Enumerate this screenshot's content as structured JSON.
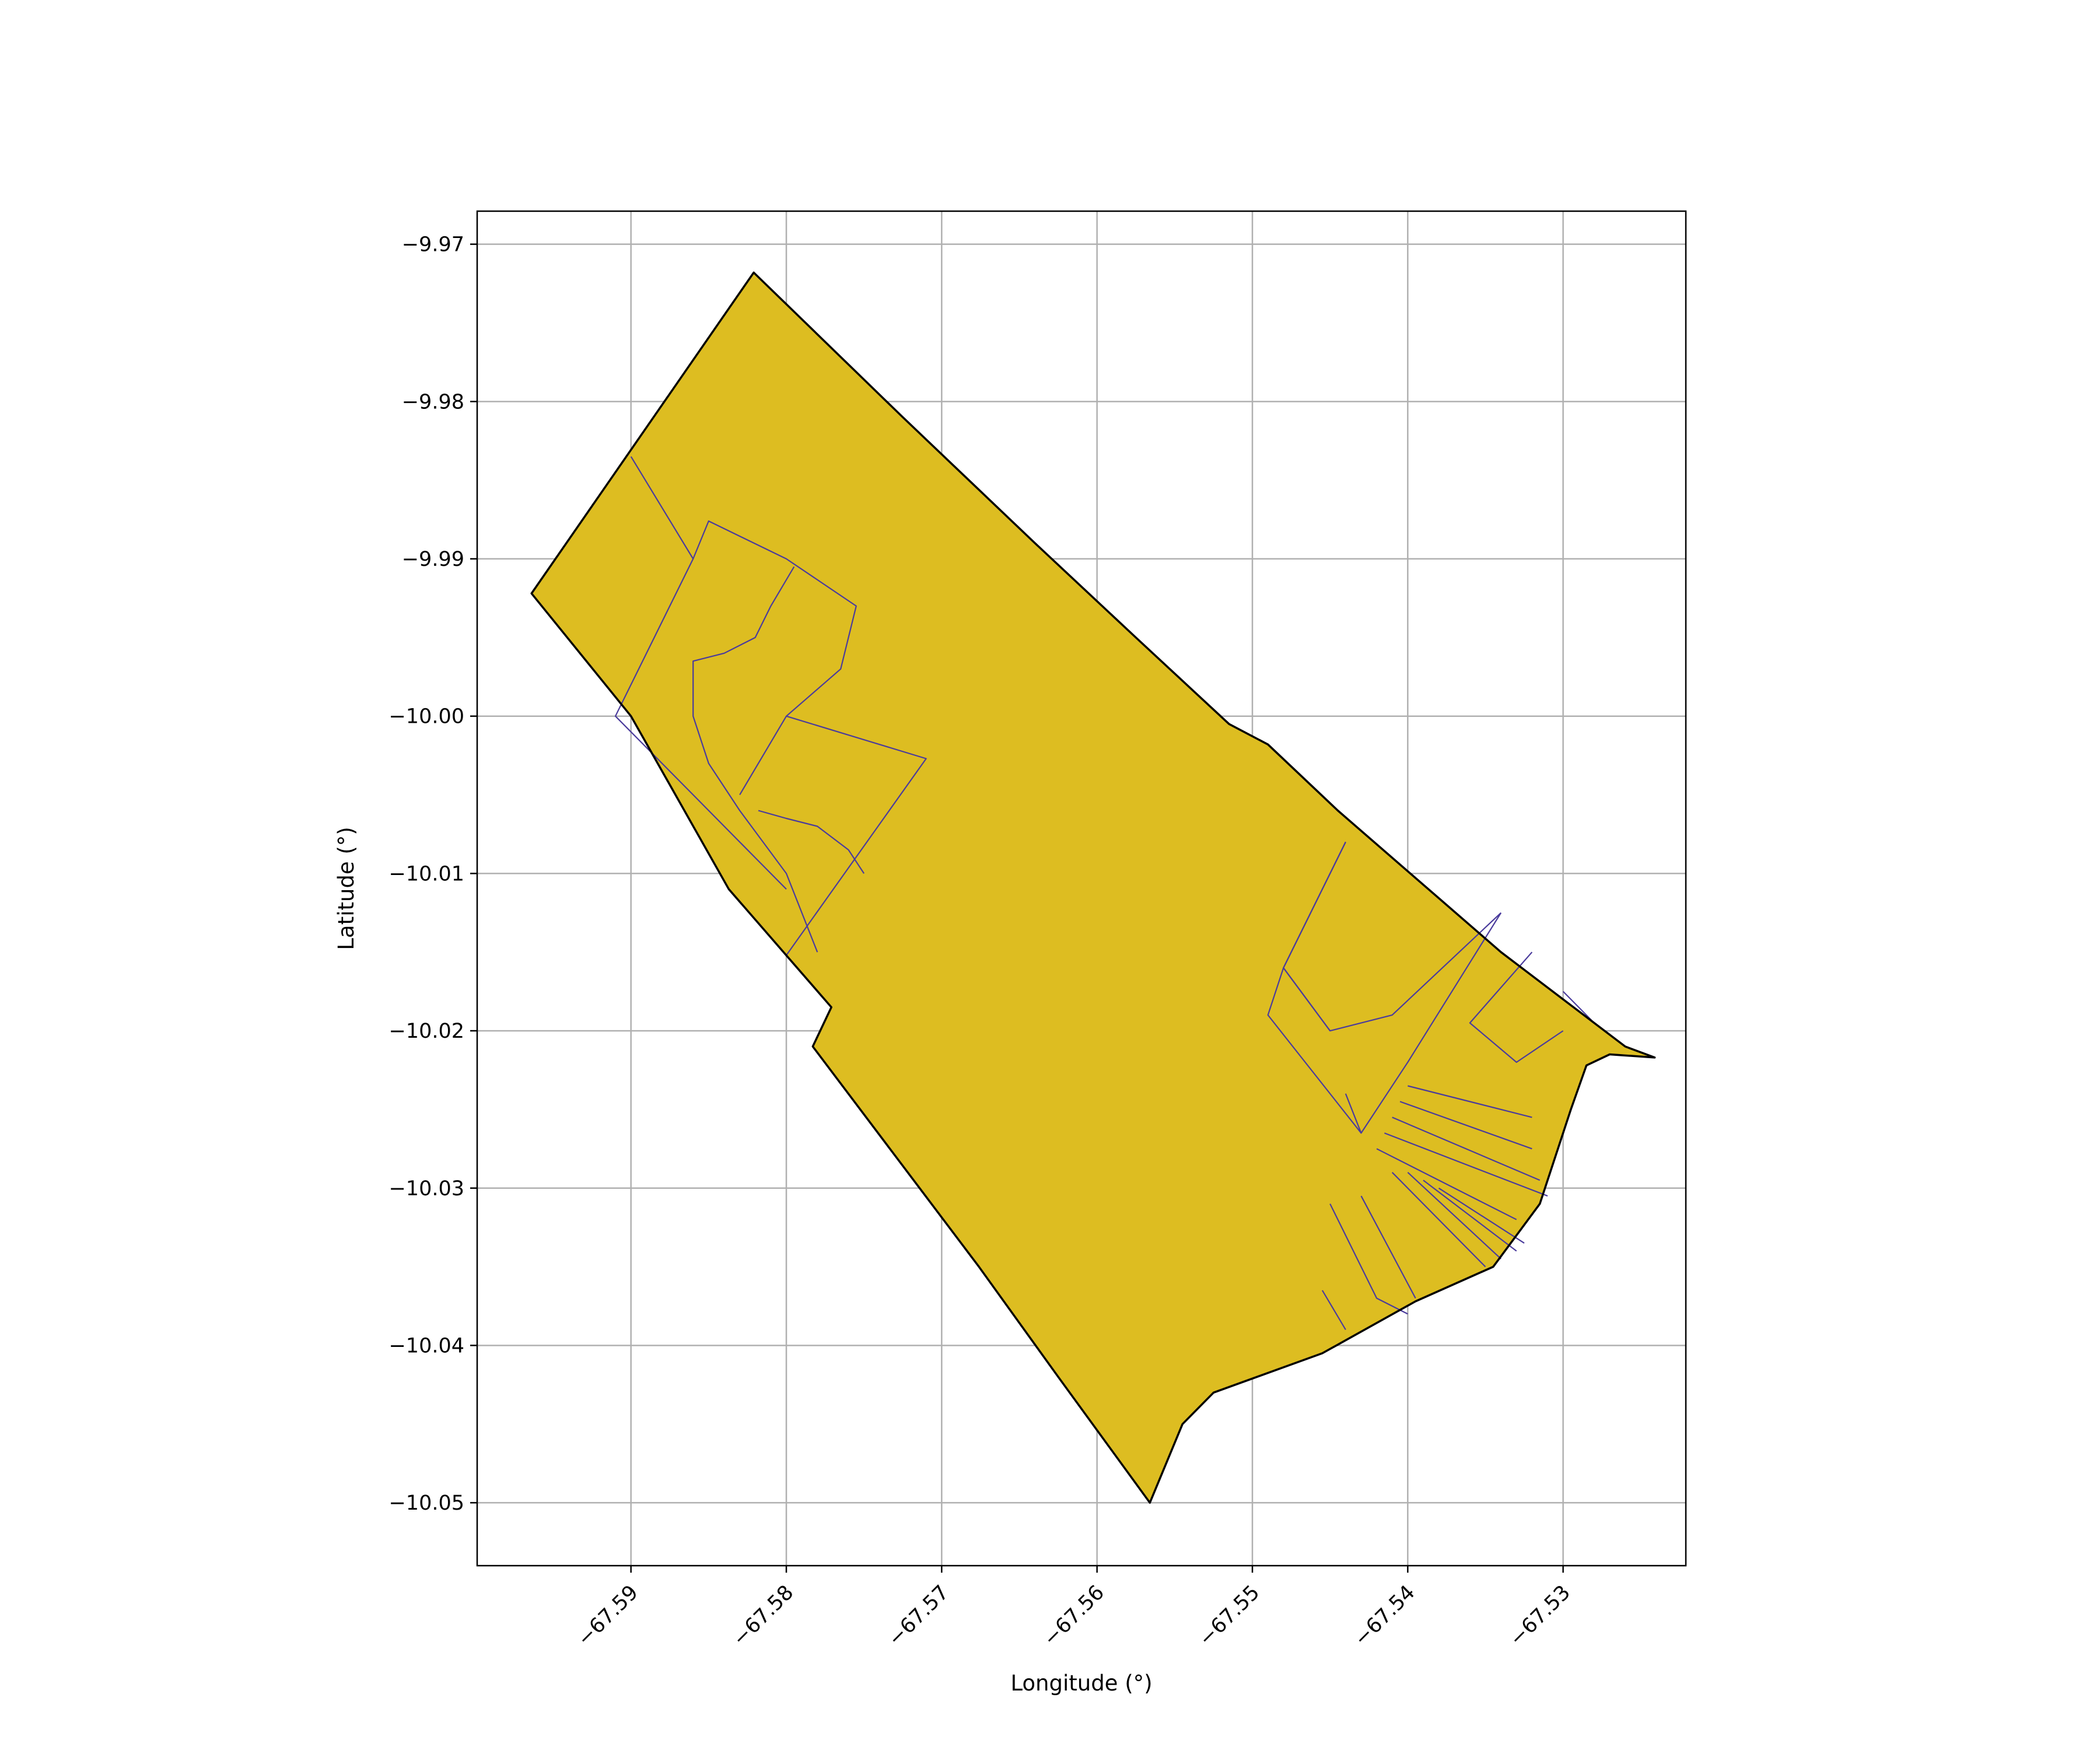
{
  "chart_data": {
    "type": "map",
    "title": "",
    "xlabel": "Longitude (°)",
    "ylabel": "Latitude (°)",
    "xlim": [
      -67.5999,
      -67.5221
    ],
    "ylim": [
      -10.054,
      -9.9679
    ],
    "grid": true,
    "x_ticks": [
      -67.59,
      -67.58,
      -67.57,
      -67.56,
      -67.55,
      -67.54,
      -67.53
    ],
    "x_tick_labels": [
      "−67.59",
      "−67.58",
      "−67.57",
      "−67.56",
      "−67.55",
      "−67.54",
      "−67.53"
    ],
    "y_ticks": [
      -9.97,
      -9.98,
      -9.99,
      -10.0,
      -10.01,
      -10.02,
      -10.03,
      -10.04,
      -10.05
    ],
    "y_tick_labels": [
      "−9.97",
      "−9.98",
      "−9.99",
      "−10.00",
      "−10.01",
      "−10.02",
      "−10.03",
      "−10.04",
      "−10.05"
    ],
    "colors": {
      "fill": "#ddbd21",
      "outline": "#000000",
      "inner_lines": "#4a3b9c",
      "grid": "#b0b0b0"
    },
    "outer_boundary": [
      [
        -67.5821,
        -9.9718
      ],
      [
        -67.5725,
        -9.981
      ],
      [
        -67.564,
        -9.989
      ],
      [
        -67.5575,
        -9.995
      ],
      [
        -67.5515,
        -10.0005
      ],
      [
        -67.549,
        -10.0018
      ],
      [
        -67.5445,
        -10.006
      ],
      [
        -67.534,
        -10.015
      ],
      [
        -67.526,
        -10.021
      ],
      [
        -67.5241,
        -10.0217
      ],
      [
        -67.527,
        -10.0215
      ],
      [
        -67.5285,
        -10.0222
      ],
      [
        -67.5295,
        -10.025
      ],
      [
        -67.5315,
        -10.031
      ],
      [
        -67.5345,
        -10.035
      ],
      [
        -67.5395,
        -10.0372
      ],
      [
        -67.5455,
        -10.0405
      ],
      [
        -67.5525,
        -10.043
      ],
      [
        -67.5545,
        -10.045
      ],
      [
        -67.5566,
        -10.05
      ],
      [
        -67.5625,
        -10.042
      ],
      [
        -67.5676,
        -10.035
      ],
      [
        -67.5783,
        -10.021
      ],
      [
        -67.5771,
        -10.0185
      ],
      [
        -67.5837,
        -10.011
      ],
      [
        -67.59,
        -10.0
      ],
      [
        -67.5964,
        -9.9922
      ],
      [
        -67.5821,
        -9.9718
      ]
    ],
    "inner_lines": [
      [
        [
          -67.59,
          -9.9835
        ],
        [
          -67.586,
          -9.99
        ],
        [
          -67.591,
          -10.0
        ],
        [
          -67.586,
          -10.005
        ],
        [
          -67.582,
          -10.009
        ],
        [
          -67.58,
          -10.011
        ]
      ],
      [
        [
          -67.586,
          -9.99
        ],
        [
          -67.585,
          -9.9876
        ],
        [
          -67.58,
          -9.99
        ],
        [
          -67.5755,
          -9.993
        ],
        [
          -67.5765,
          -9.997
        ],
        [
          -67.58,
          -10.0
        ],
        [
          -67.583,
          -10.005
        ]
      ],
      [
        [
          -67.5795,
          -9.9905
        ],
        [
          -67.581,
          -9.993
        ],
        [
          -67.582,
          -9.995
        ],
        [
          -67.584,
          -9.996
        ],
        [
          -67.586,
          -9.9965
        ],
        [
          -67.586,
          -10.0
        ],
        [
          -67.585,
          -10.003
        ],
        [
          -67.583,
          -10.006
        ],
        [
          -67.5815,
          -10.008
        ],
        [
          -67.58,
          -10.01
        ],
        [
          -67.578,
          -10.015
        ]
      ],
      [
        [
          -67.58,
          -10.0
        ],
        [
          -67.571,
          -10.0027
        ],
        [
          -67.58,
          -10.0152
        ]
      ],
      [
        [
          -67.5818,
          -10.006
        ],
        [
          -67.58,
          -10.0065
        ],
        [
          -67.578,
          -10.007
        ],
        [
          -67.576,
          -10.0085
        ],
        [
          -67.575,
          -10.01
        ]
      ],
      [
        [
          -67.544,
          -10.008
        ],
        [
          -67.548,
          -10.016
        ],
        [
          -67.549,
          -10.019
        ],
        [
          -67.543,
          -10.0265
        ],
        [
          -67.544,
          -10.024
        ]
      ],
      [
        [
          -67.548,
          -10.016
        ],
        [
          -67.545,
          -10.02
        ],
        [
          -67.541,
          -10.019
        ],
        [
          -67.534,
          -10.0125
        ]
      ],
      [
        [
          -67.545,
          -10.02
        ],
        [
          -67.548,
          -10.016
        ],
        [
          -67.544,
          -10.008
        ]
      ],
      [
        [
          -67.534,
          -10.0125
        ],
        [
          -67.54,
          -10.022
        ],
        [
          -67.543,
          -10.0265
        ]
      ],
      [
        [
          -67.532,
          -10.015
        ],
        [
          -67.536,
          -10.0195
        ],
        [
          -67.533,
          -10.022
        ],
        [
          -67.53,
          -10.02
        ]
      ],
      [
        [
          -67.53,
          -10.0175
        ],
        [
          -67.528,
          -10.0195
        ],
        [
          -67.526,
          -10.021
        ]
      ],
      [
        [
          -67.54,
          -10.0235
        ],
        [
          -67.532,
          -10.0255
        ]
      ],
      [
        [
          -67.5405,
          -10.0245
        ],
        [
          -67.532,
          -10.0275
        ]
      ],
      [
        [
          -67.541,
          -10.0255
        ],
        [
          -67.5315,
          -10.0295
        ]
      ],
      [
        [
          -67.5415,
          -10.0265
        ],
        [
          -67.531,
          -10.0305
        ]
      ],
      [
        [
          -67.542,
          -10.0275
        ],
        [
          -67.533,
          -10.032
        ]
      ],
      [
        [
          -67.545,
          -10.031
        ],
        [
          -67.542,
          -10.037
        ],
        [
          -67.54,
          -10.038
        ]
      ],
      [
        [
          -67.543,
          -10.0305
        ],
        [
          -67.5395,
          -10.037
        ]
      ],
      [
        [
          -67.541,
          -10.029
        ],
        [
          -67.535,
          -10.035
        ]
      ],
      [
        [
          -67.54,
          -10.029
        ],
        [
          -67.534,
          -10.0345
        ]
      ],
      [
        [
          -67.539,
          -10.0295
        ],
        [
          -67.533,
          -10.034
        ]
      ],
      [
        [
          -67.538,
          -10.03
        ],
        [
          -67.5325,
          -10.0335
        ]
      ],
      [
        [
          -67.5455,
          -10.0365
        ],
        [
          -67.544,
          -10.039
        ]
      ]
    ]
  }
}
